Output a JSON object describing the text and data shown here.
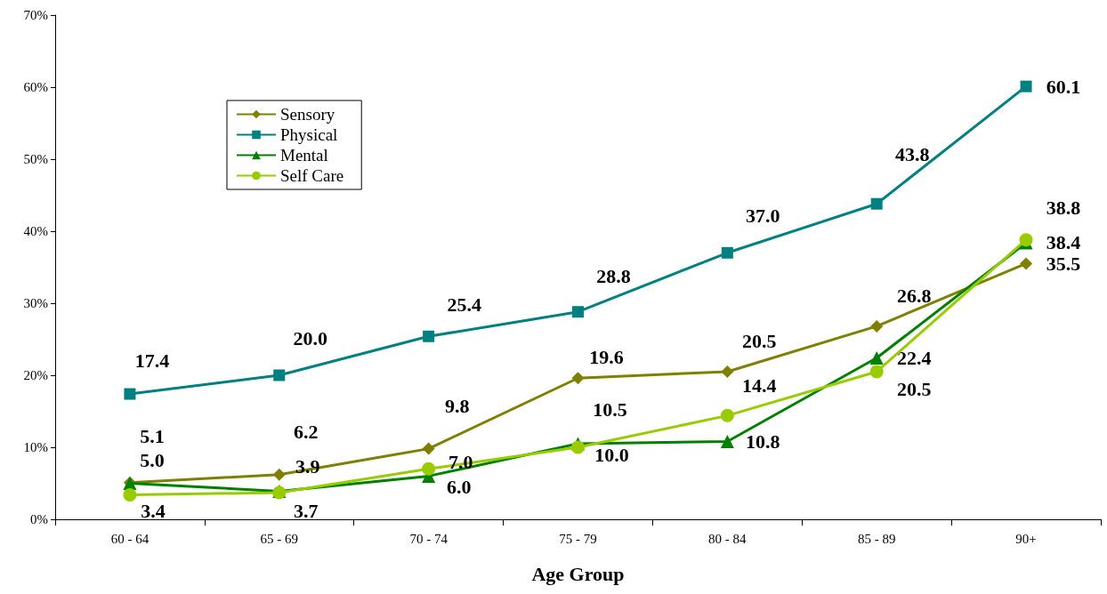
{
  "chart_data": {
    "type": "line",
    "xlabel": "Age Group",
    "categories": [
      "60 - 64",
      "65 - 69",
      "70 - 74",
      "75 - 79",
      "80 - 84",
      "85 - 89",
      "90+"
    ],
    "series": [
      {
        "name": "Sensory",
        "color": "#808000",
        "marker": "diamond",
        "values": [
          5.1,
          6.2,
          9.8,
          19.6,
          20.5,
          26.8,
          35.5
        ],
        "value_labels": [
          "5.1",
          "6.2",
          "9.8",
          "19.6",
          "20.5",
          "26.8",
          "35.5"
        ]
      },
      {
        "name": "Physical",
        "color": "#008080",
        "marker": "square",
        "values": [
          17.4,
          20.0,
          25.4,
          28.8,
          37.0,
          43.8,
          60.1
        ],
        "value_labels": [
          "17.4",
          "20.0",
          "25.4",
          "28.8",
          "37.0",
          "43.8",
          "60.1"
        ]
      },
      {
        "name": "Mental",
        "color": "#008000",
        "marker": "triangle",
        "values": [
          5.0,
          3.9,
          6.0,
          10.5,
          10.8,
          22.4,
          38.4
        ],
        "value_labels": [
          "5.0",
          "3.9",
          "6.0",
          "10.5",
          "10.8",
          "22.4",
          "38.4"
        ]
      },
      {
        "name": "Self Care",
        "color": "#99cc00",
        "marker": "circle",
        "values": [
          3.4,
          3.7,
          7.0,
          10.0,
          14.4,
          20.5,
          38.8
        ],
        "value_labels": [
          "3.4",
          "3.7",
          "7.0",
          "10.0",
          "14.4",
          "20.5",
          "38.8"
        ]
      }
    ],
    "ylim": [
      0,
      70
    ],
    "yticks": [
      {
        "value": 0,
        "label": "0%"
      },
      {
        "value": 10,
        "label": "10%"
      },
      {
        "value": 20,
        "label": "20%"
      },
      {
        "value": 30,
        "label": "30%"
      },
      {
        "value": 40,
        "label": "40%"
      },
      {
        "value": 50,
        "label": "50%"
      },
      {
        "value": 60,
        "label": "60%"
      },
      {
        "value": 70,
        "label": "70%"
      }
    ],
    "data_labels": true,
    "legend": "top left",
    "grid": false,
    "line_style": "solid"
  }
}
